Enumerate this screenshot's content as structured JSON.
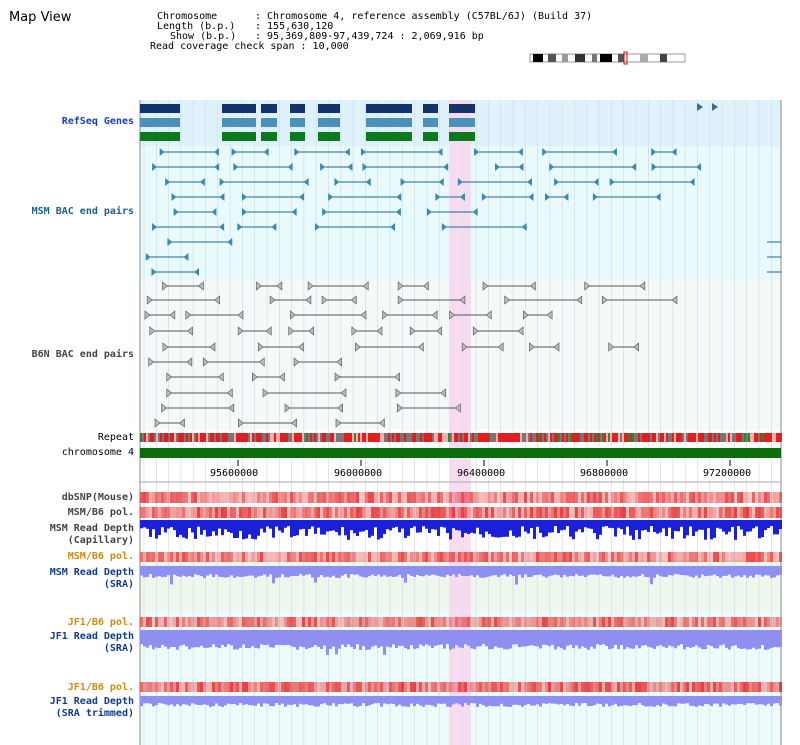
{
  "title": "Map View",
  "info": {
    "chromosome_label": "Chromosome",
    "chromosome_value": ": Chromosome 4, reference assembly (C57BL/6J) (Build 37)",
    "length_label": "Length (b.p.)",
    "length_value": ": 155,630,120",
    "show_label": "Show (b.p.)",
    "show_value": ": 95,369,809-97,439,724 : 2,069,916 bp",
    "coverage": "Read coverage check span : 10,000"
  },
  "tracks": {
    "refseq": "RefSeq Genes",
    "msm_bac": "MSM BAC end pairs",
    "b6n_bac": "B6N BAC end pairs",
    "repeat": "Repeat",
    "chromosome": "chromosome 4",
    "dbsnp": "dbSNP(Mouse)",
    "msm_b6_pol": "MSM/B6 pol.",
    "msm_depth_cap_1": "MSM Read Depth",
    "msm_depth_cap_2": "(Capillary)",
    "msm_b6_pol2": "MSM/B6 pol.",
    "msm_depth_sra_1": "MSM Read Depth",
    "msm_depth_sra_2": "(SRA)",
    "jf1_pol": "JF1/B6 pol.",
    "jf1_depth_1": "JF1 Read Depth",
    "jf1_depth_2": "(SRA)",
    "jf1_pol2": "JF1/B6 pol.",
    "jf1_trim_1": "JF1 Read Depth",
    "jf1_trim_2": "(SRA trimmed)"
  },
  "axis": {
    "ticks": [
      "95600000",
      "96000000",
      "96400000",
      "96800000",
      "97200000"
    ]
  },
  "colors": {
    "refseq_bg": "#dff2fb",
    "msm_bg": "#e8fafc",
    "b6n_bg": "#f6f9fa",
    "highlight": "#f7d6ef",
    "chromosome_bar": "#0b6e0b",
    "depth_cap": "#1a20d8",
    "depth_sra": "#8f8ff2"
  }
}
